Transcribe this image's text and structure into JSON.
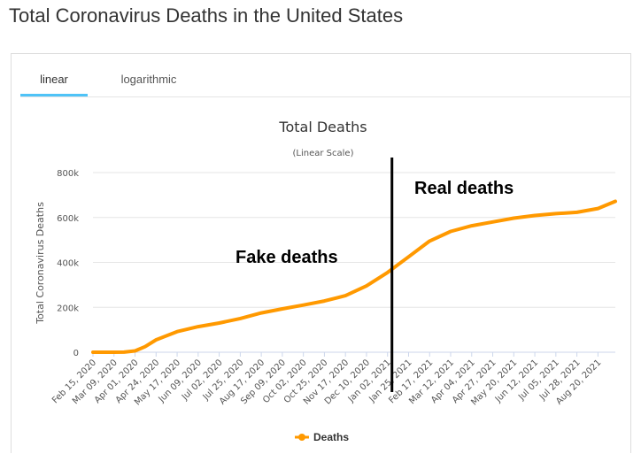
{
  "page": {
    "title": "Total Coronavirus Deaths in the United States"
  },
  "tabs": [
    {
      "label": "linear",
      "active": true
    },
    {
      "label": "logarithmic",
      "active": false
    }
  ],
  "colors": {
    "series": "#ff9900",
    "tab_accent": "#4fc3f7",
    "grid": "#e6e6e6",
    "divider": "#000000"
  },
  "chart_data": {
    "type": "line",
    "title": "Total Deaths",
    "subtitle": "(Linear Scale)",
    "ylabel": "Total Coronavirus Deaths",
    "xlabel": "",
    "grid": true,
    "legend_position": "bottom",
    "ylim": [
      0,
      800000
    ],
    "y_ticks": [
      {
        "value": 0,
        "label": "0"
      },
      {
        "value": 200000,
        "label": "200k"
      },
      {
        "value": 400000,
        "label": "400k"
      },
      {
        "value": 600000,
        "label": "600k"
      },
      {
        "value": 800000,
        "label": "800k"
      }
    ],
    "x_ticks": [
      "Feb 15, 2020",
      "Mar 09, 2020",
      "Apr 01, 2020",
      "Apr 24, 2020",
      "May 17, 2020",
      "Jun 09, 2020",
      "Jul 02, 2020",
      "Jul 25, 2020",
      "Aug 17, 2020",
      "Sep 09, 2020",
      "Oct 02, 2020",
      "Oct 25, 2020",
      "Nov 17, 2020",
      "Dec 10, 2020",
      "Jan 02, 2021",
      "Jan 25, 2021",
      "Feb 17, 2021",
      "Mar 12, 2021",
      "Apr 04, 2021",
      "Apr 27, 2021",
      "May 20, 2021",
      "Jun 12, 2021",
      "Jul 05, 2021",
      "Jul 28, 2021",
      "Aug 20, 2021"
    ],
    "series": [
      {
        "name": "Deaths",
        "color": "#ff9900",
        "points": [
          {
            "x": "Feb 15, 2020",
            "y": 0
          },
          {
            "x": "Mar 09, 2020",
            "y": 0
          },
          {
            "x": "Mar 20, 2020",
            "y": 300
          },
          {
            "x": "Apr 01, 2020",
            "y": 6000
          },
          {
            "x": "Apr 12, 2020",
            "y": 25000
          },
          {
            "x": "Apr 24, 2020",
            "y": 55000
          },
          {
            "x": "May 17, 2020",
            "y": 92000
          },
          {
            "x": "Jun 09, 2020",
            "y": 114000
          },
          {
            "x": "Jul 02, 2020",
            "y": 130000
          },
          {
            "x": "Jul 25, 2020",
            "y": 150000
          },
          {
            "x": "Aug 17, 2020",
            "y": 175000
          },
          {
            "x": "Sep 09, 2020",
            "y": 193000
          },
          {
            "x": "Oct 02, 2020",
            "y": 210000
          },
          {
            "x": "Oct 25, 2020",
            "y": 228000
          },
          {
            "x": "Nov 17, 2020",
            "y": 252000
          },
          {
            "x": "Dec 10, 2020",
            "y": 295000
          },
          {
            "x": "Jan 02, 2021",
            "y": 355000
          },
          {
            "x": "Jan 25, 2021",
            "y": 425000
          },
          {
            "x": "Feb 17, 2021",
            "y": 495000
          },
          {
            "x": "Mar 12, 2021",
            "y": 538000
          },
          {
            "x": "Apr 04, 2021",
            "y": 563000
          },
          {
            "x": "Apr 27, 2021",
            "y": 580000
          },
          {
            "x": "May 20, 2021",
            "y": 597000
          },
          {
            "x": "Jun 12, 2021",
            "y": 609000
          },
          {
            "x": "Jul 05, 2021",
            "y": 617000
          },
          {
            "x": "Jul 28, 2021",
            "y": 623000
          },
          {
            "x": "Aug 20, 2021",
            "y": 640000
          },
          {
            "x": "Sep 08, 2021",
            "y": 672000
          }
        ]
      }
    ],
    "annotations": [
      {
        "text": "Fake deaths"
      },
      {
        "text": "Real deaths"
      }
    ],
    "divider_at": "Jan 02, 2021"
  }
}
